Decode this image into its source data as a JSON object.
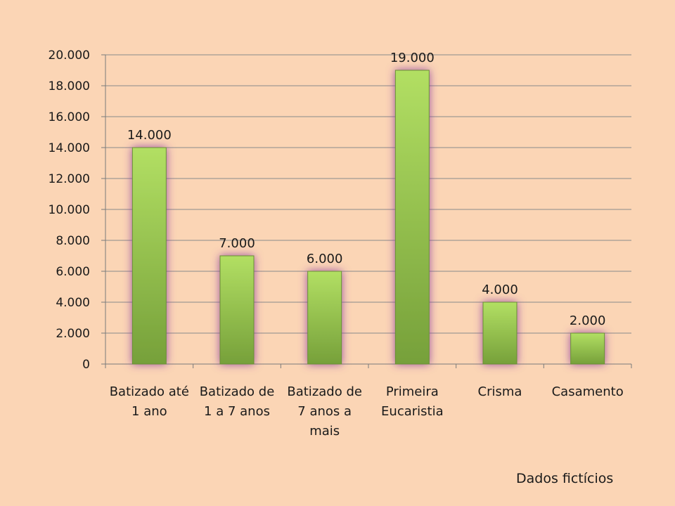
{
  "chart_data": {
    "type": "bar",
    "categories": [
      [
        "Batizado até",
        "1 ano"
      ],
      [
        "Batizado de",
        "1 a 7 anos"
      ],
      [
        "Batizado de",
        "7 anos a",
        "mais"
      ],
      [
        "Primeira",
        "Eucaristia"
      ],
      [
        "Crisma"
      ],
      [
        "Casamento"
      ]
    ],
    "values": [
      14000,
      7000,
      6000,
      19000,
      4000,
      2000
    ],
    "value_labels": [
      "14.000",
      "7.000",
      "6.000",
      "19.000",
      "4.000",
      "2.000"
    ],
    "yticks": [
      "0",
      "2.000",
      "4.000",
      "6.000",
      "8.000",
      "10.000",
      "12.000",
      "14.000",
      "16.000",
      "18.000",
      "20.000"
    ],
    "ylim": [
      0,
      20000
    ],
    "grid": true,
    "colors": {
      "bar_top": "#aedc5c",
      "bar_bottom": "#77a13a",
      "glow": "#8a3a9e",
      "background": "#fbd5b5"
    }
  },
  "note": "Dados fictícios"
}
